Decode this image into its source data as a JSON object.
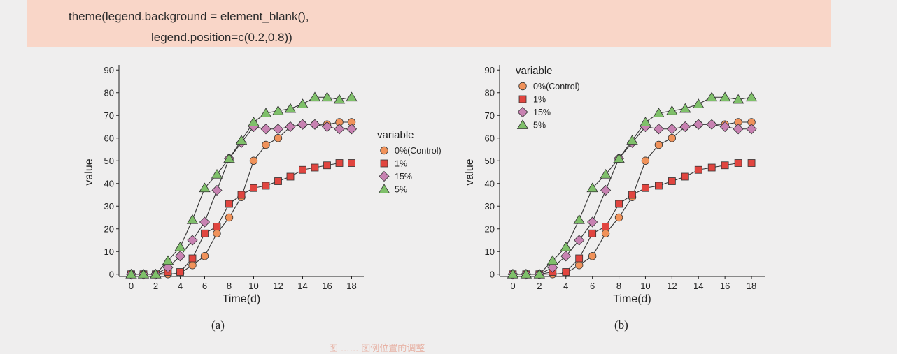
{
  "code": {
    "line1": "theme(legend.background = element_blank(),",
    "line2": "legend.position=c(0.2,0.8))"
  },
  "captions": {
    "a": "(a)",
    "b": "(b)"
  },
  "figure_note": "图 …… 图例位置的调整",
  "colors": {
    "code_background": "#f9d6c8",
    "0%(Control)": "#f0925a",
    "1%": "#e1453f",
    "15%": "#c882b2",
    "5%": "#7fc06a"
  },
  "chart_data": [
    {
      "type": "line",
      "panel": "a",
      "xlabel": "Time(d)",
      "ylabel": "value",
      "xlim": [
        -1,
        19
      ],
      "ylim": [
        -1,
        91
      ],
      "xticks": [
        0,
        2,
        4,
        6,
        8,
        10,
        12,
        14,
        16,
        18
      ],
      "yticks": [
        0,
        10,
        20,
        30,
        40,
        50,
        60,
        70,
        80,
        90
      ],
      "grid": false,
      "legend_title": "variable",
      "legend_position": "right",
      "x": [
        0,
        1,
        2,
        3,
        4,
        5,
        6,
        7,
        8,
        9,
        10,
        11,
        12,
        13,
        14,
        15,
        16,
        17,
        18
      ],
      "series": [
        {
          "name": "0%(Control)",
          "marker": "circle",
          "values": [
            0,
            0,
            0,
            0,
            0.5,
            4,
            8,
            18,
            25,
            34,
            50,
            57,
            60,
            65,
            66,
            66,
            66,
            67,
            67
          ]
        },
        {
          "name": "1%",
          "marker": "square",
          "values": [
            0,
            0,
            0,
            1,
            1,
            7,
            18,
            21,
            31,
            35,
            38,
            39,
            41,
            43,
            46,
            47,
            48,
            49,
            49
          ]
        },
        {
          "name": "15%",
          "marker": "diamond",
          "values": [
            0,
            0,
            0,
            3,
            8,
            15,
            23,
            37,
            51,
            58,
            65,
            64,
            64,
            65,
            66,
            66,
            65,
            64,
            64
          ]
        },
        {
          "name": "5%",
          "marker": "triangle",
          "values": [
            0,
            0,
            0,
            6,
            12,
            24,
            38,
            44,
            51,
            59,
            67,
            71,
            72,
            73,
            75,
            78,
            78,
            77,
            78
          ]
        }
      ]
    },
    {
      "type": "line",
      "panel": "b",
      "xlabel": "Time(d)",
      "ylabel": "value",
      "xlim": [
        -1,
        19
      ],
      "ylim": [
        -1,
        91
      ],
      "xticks": [
        0,
        2,
        4,
        6,
        8,
        10,
        12,
        14,
        16,
        18
      ],
      "yticks": [
        0,
        10,
        20,
        30,
        40,
        50,
        60,
        70,
        80,
        90
      ],
      "grid": false,
      "legend_title": "variable",
      "legend_position": "top-left",
      "x": [
        0,
        1,
        2,
        3,
        4,
        5,
        6,
        7,
        8,
        9,
        10,
        11,
        12,
        13,
        14,
        15,
        16,
        17,
        18
      ],
      "series": [
        {
          "name": "0%(Control)",
          "marker": "circle",
          "values": [
            0,
            0,
            0,
            0,
            0.5,
            4,
            8,
            18,
            25,
            34,
            50,
            57,
            60,
            65,
            66,
            66,
            66,
            67,
            67
          ]
        },
        {
          "name": "1%",
          "marker": "square",
          "values": [
            0,
            0,
            0,
            1,
            1,
            7,
            18,
            21,
            31,
            35,
            38,
            39,
            41,
            43,
            46,
            47,
            48,
            49,
            49
          ]
        },
        {
          "name": "15%",
          "marker": "diamond",
          "values": [
            0,
            0,
            0,
            3,
            8,
            15,
            23,
            37,
            51,
            58,
            65,
            64,
            64,
            65,
            66,
            66,
            65,
            64,
            64
          ]
        },
        {
          "name": "5%",
          "marker": "triangle",
          "values": [
            0,
            0,
            0,
            6,
            12,
            24,
            38,
            44,
            51,
            59,
            67,
            71,
            72,
            73,
            75,
            78,
            78,
            77,
            78
          ]
        }
      ]
    }
  ]
}
